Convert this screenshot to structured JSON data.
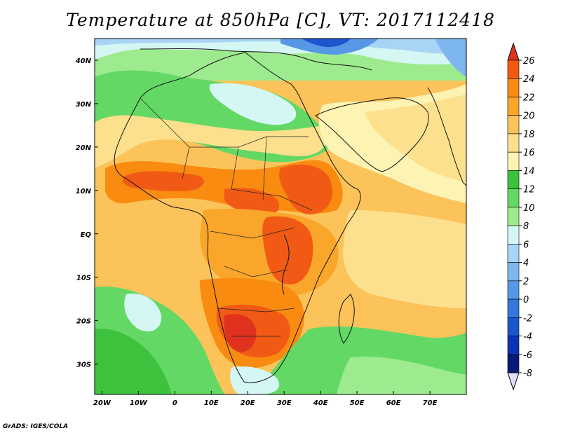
{
  "title": "Temperature at 850hPa [C], VT: 2017112418",
  "credit": "GrADS: IGES/COLA",
  "map": {
    "lon_range": [
      -22,
      80
    ],
    "lat_range": [
      -37,
      45
    ],
    "lon_ticks": [
      "20W",
      "10W",
      "0",
      "10E",
      "20E",
      "30E",
      "40E",
      "50E",
      "60E",
      "70E"
    ],
    "lat_ticks": [
      "40N",
      "30N",
      "20N",
      "10N",
      "EQ",
      "10S",
      "20S",
      "30S"
    ]
  },
  "colorbar": {
    "labels": [
      "26",
      "24",
      "22",
      "20",
      "18",
      "16",
      "14",
      "12",
      "10",
      "8",
      "6",
      "4",
      "2",
      "0",
      "-2",
      "-4",
      "-6",
      "-8"
    ],
    "colors": [
      "#e0321f",
      "#f05a14",
      "#f88b10",
      "#faa62a",
      "#fcc35a",
      "#fde08e",
      "#fdf3b2",
      "#3dc23d",
      "#64d864",
      "#9deb8e",
      "#d5f7f4",
      "#a8d4f5",
      "#7eb6ef",
      "#5697e6",
      "#3478db",
      "#1b56cf",
      "#0b33b8",
      "#061a7a"
    ],
    "top_color": "#e0321f",
    "bottom_color": "#e0defa"
  }
}
